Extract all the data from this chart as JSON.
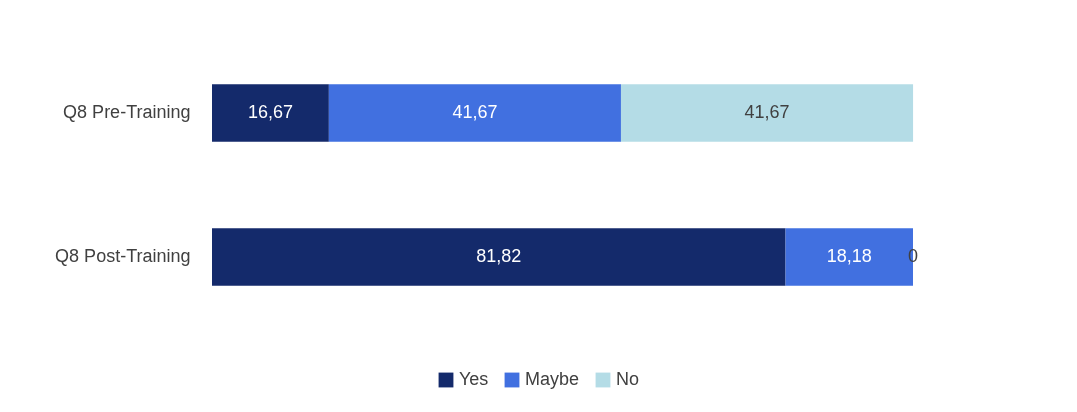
{
  "chart_data": {
    "type": "bar",
    "orientation": "horizontal",
    "stacked": true,
    "categories": [
      "Q8 Pre-Training",
      "Q8 Post-Training"
    ],
    "xlim": [
      0,
      100
    ],
    "tick_labels": "y",
    "legend": "bottom",
    "series": [
      {
        "name": "Yes",
        "color": "#142a6b",
        "values": [
          16.67,
          81.82
        ],
        "value_labels": [
          "16,67",
          "81,82"
        ]
      },
      {
        "name": "Maybe",
        "color": "#4170e0",
        "values": [
          41.67,
          18.18
        ],
        "value_labels": [
          "41,67",
          "18,18"
        ]
      },
      {
        "name": "No",
        "color": "#b4dce6",
        "values": [
          41.67,
          0
        ],
        "value_labels": [
          "41,67",
          "0"
        ]
      }
    ]
  }
}
